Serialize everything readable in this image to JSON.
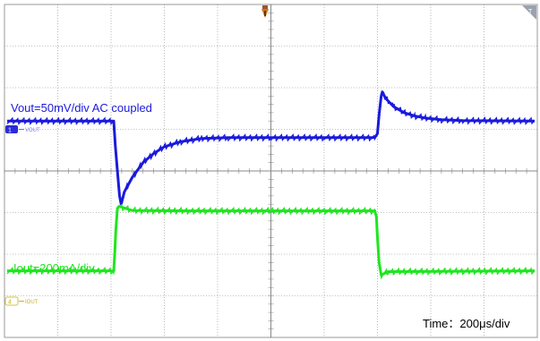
{
  "chart_data": {
    "type": "line",
    "ylim": [
      -4,
      4
    ],
    "xlim": [
      0,
      10
    ],
    "series": [
      {
        "name": "VOUT",
        "channel": "1",
        "color": "#1a1adc",
        "annotation": "Vout=50mV/div AC coupled",
        "points": [
          [
            0.05,
            1.2
          ],
          [
            2.05,
            1.2
          ],
          [
            2.08,
            0.6
          ],
          [
            2.12,
            0.0
          ],
          [
            2.16,
            -0.6
          ],
          [
            2.19,
            -0.8
          ],
          [
            2.25,
            -0.5
          ],
          [
            2.4,
            -0.15
          ],
          [
            2.6,
            0.2
          ],
          [
            2.8,
            0.42
          ],
          [
            3.0,
            0.58
          ],
          [
            3.3,
            0.7
          ],
          [
            3.7,
            0.78
          ],
          [
            4.2,
            0.8
          ],
          [
            5.0,
            0.8
          ],
          [
            6.0,
            0.8
          ],
          [
            6.95,
            0.8
          ],
          [
            7.0,
            0.9
          ],
          [
            7.03,
            1.35
          ],
          [
            7.07,
            1.8
          ],
          [
            7.09,
            1.9
          ],
          [
            7.15,
            1.75
          ],
          [
            7.3,
            1.55
          ],
          [
            7.5,
            1.4
          ],
          [
            7.7,
            1.32
          ],
          [
            7.9,
            1.27
          ],
          [
            8.2,
            1.23
          ],
          [
            8.6,
            1.21
          ],
          [
            9.95,
            1.2
          ]
        ]
      },
      {
        "name": "IOUT",
        "channel": "4",
        "color": "#1ee61e",
        "annotation": "Iout=200mA/div",
        "points": [
          [
            0.05,
            -2.4
          ],
          [
            2.05,
            -2.4
          ],
          [
            2.07,
            -1.95
          ],
          [
            2.09,
            -1.4
          ],
          [
            2.12,
            -0.9
          ],
          [
            2.15,
            -0.85
          ],
          [
            2.4,
            -0.95
          ],
          [
            3.5,
            -0.96
          ],
          [
            5.0,
            -0.96
          ],
          [
            6.95,
            -0.96
          ],
          [
            6.98,
            -1.1
          ],
          [
            7.0,
            -1.6
          ],
          [
            7.03,
            -2.2
          ],
          [
            7.07,
            -2.5
          ],
          [
            7.2,
            -2.42
          ],
          [
            9.95,
            -2.4
          ]
        ]
      }
    ],
    "annotations": [
      "Vout=50mV/div AC coupled",
      "Iout=200mA/div",
      "Time：200μs/div"
    ],
    "grid": true
  },
  "labels": {
    "vout": "Vout=50mV/div AC coupled",
    "iout": "Iout=200mA/div",
    "time": "Time：200μs/div",
    "ch1": "1",
    "ch1_name": "VOUT",
    "ch4": "4",
    "ch4_name": "IOUT"
  },
  "colors": {
    "vout": "#1a1adc",
    "iout": "#1ee61e",
    "grid": "#888888",
    "trigger_marker": "#a0522d"
  },
  "icons": {
    "trigger": "trigger-position-icon",
    "corner": "trigger-level-icon"
  }
}
